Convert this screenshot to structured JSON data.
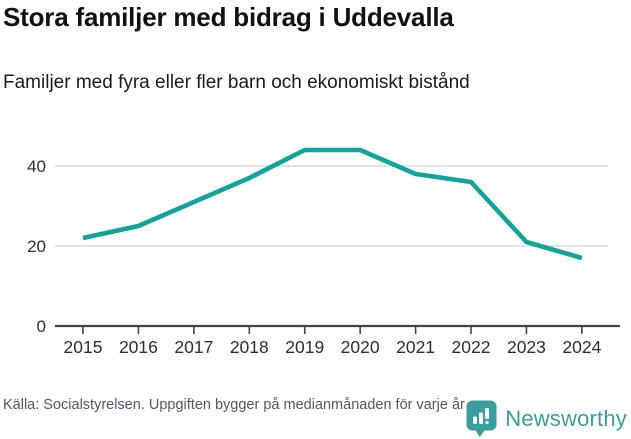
{
  "header": {
    "title": "Stora familjer med bidrag i Uddevalla",
    "subtitle": "Familjer med fyra eller fler barn och ekonomiskt bistånd"
  },
  "footer": {
    "source": "Källa: Socialstyrelsen. Uppgiften bygger på medianmånaden för varje år",
    "brand_name": "Newsworthy",
    "brand_icon": "newsworthy-bar-chart-bubble-icon"
  },
  "colors": {
    "line": "#11a49c",
    "grid": "#e1e1e1",
    "axis": "#444444",
    "tick_label": "#2e2e2e",
    "footer_text": "#56565e",
    "brand": "#3a9e9c"
  },
  "chart_data": {
    "type": "line",
    "title": "Stora familjer med bidrag i Uddevalla",
    "subtitle": "Familjer med fyra eller fler barn och ekonomiskt bistånd",
    "categories": [
      "2015",
      "2016",
      "2017",
      "2018",
      "2019",
      "2020",
      "2021",
      "2022",
      "2023",
      "2024"
    ],
    "series": [
      {
        "name": "Familjer med fyra eller fler barn och ekonomiskt bistånd",
        "values": [
          22,
          25,
          31,
          37,
          44,
          44,
          38,
          36,
          21,
          17
        ]
      }
    ],
    "xlabel": "",
    "ylabel": "",
    "yticks": [
      0,
      20,
      40
    ],
    "ylim": [
      0,
      48
    ],
    "grid": "horizontal",
    "legend_position": "none"
  }
}
